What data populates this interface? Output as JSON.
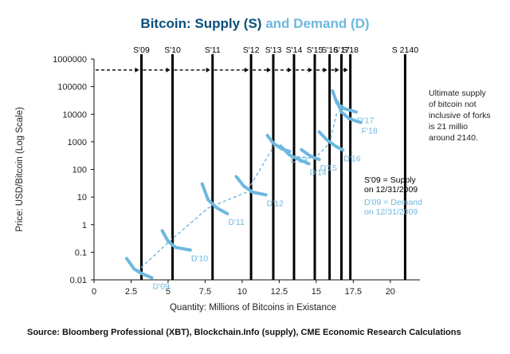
{
  "chart_data": {
    "type": "line",
    "title_supply": "Bitcoin: Supply (S)",
    "title_and": "and",
    "title_demand": "Demand (D)",
    "xlabel": "Quantity: Millions of Bitcoins in Existance",
    "ylabel": "Price: USD/Bitcoin (Log Scale)",
    "xlim": [
      0,
      22
    ],
    "ylim": [
      0.01,
      1000000
    ],
    "y_scale": "log",
    "x_ticks": [
      0,
      2.5,
      5,
      7.5,
      10,
      12.5,
      15,
      17.5,
      20
    ],
    "x_tick_labels": [
      "0",
      "2.5",
      "5",
      "7.5",
      "10",
      "12.5",
      "15",
      "17.5",
      "20"
    ],
    "y_ticks": [
      0.01,
      0.1,
      1,
      10,
      100,
      1000,
      10000,
      100000,
      1000000
    ],
    "y_tick_labels": [
      "0.01",
      "0.1",
      "1",
      "10",
      "100",
      "1000",
      "10000",
      "100000",
      "1000000"
    ],
    "supply_lines": [
      {
        "label": "S'09",
        "x": 3.2
      },
      {
        "label": "S'10",
        "x": 5.3
      },
      {
        "label": "S'11",
        "x": 8.0
      },
      {
        "label": "S'12",
        "x": 10.6
      },
      {
        "label": "S'13",
        "x": 12.1
      },
      {
        "label": "S'14",
        "x": 13.5
      },
      {
        "label": "S'15",
        "x": 14.9
      },
      {
        "label": "S'16",
        "x": 15.9
      },
      {
        "label": "S'17",
        "x": 16.7
      },
      {
        "label": "S'18",
        "x": 17.3
      },
      {
        "label": "S 2140",
        "x": 21.0
      }
    ],
    "demand_curves": [
      {
        "label": "D'09",
        "points": [
          [
            2.2,
            0.06
          ],
          [
            2.7,
            0.025
          ],
          [
            3.2,
            0.017
          ],
          [
            3.9,
            0.012
          ]
        ]
      },
      {
        "label": "D'10",
        "points": [
          [
            4.6,
            0.6
          ],
          [
            5.0,
            0.25
          ],
          [
            5.5,
            0.15
          ],
          [
            6.5,
            0.12
          ]
        ]
      },
      {
        "label": "D'11",
        "points": [
          [
            7.3,
            30
          ],
          [
            7.7,
            8
          ],
          [
            8.3,
            4
          ],
          [
            9.0,
            2.5
          ]
        ]
      },
      {
        "label": "D'12",
        "points": [
          [
            9.6,
            55
          ],
          [
            10.1,
            25
          ],
          [
            10.7,
            15
          ],
          [
            11.6,
            12
          ]
        ]
      },
      {
        "label": "D'13",
        "points": [
          [
            11.7,
            1700
          ],
          [
            12.1,
            900
          ],
          [
            12.7,
            550
          ],
          [
            13.2,
            450
          ]
        ]
      },
      {
        "label": "D'14",
        "points": [
          [
            12.6,
            700
          ],
          [
            13.2,
            330
          ],
          [
            13.9,
            220
          ],
          [
            14.5,
            160
          ]
        ]
      },
      {
        "label": "D'15",
        "points": [
          [
            14.0,
            520
          ],
          [
            14.5,
            330
          ],
          [
            14.9,
            260
          ],
          [
            15.2,
            230
          ]
        ]
      },
      {
        "label": "D'16",
        "points": [
          [
            15.2,
            2300
          ],
          [
            15.7,
            1200
          ],
          [
            16.3,
            700
          ],
          [
            16.8,
            500
          ]
        ]
      },
      {
        "label": "D'17",
        "points": [
          [
            16.1,
            70000
          ],
          [
            16.4,
            25000
          ],
          [
            16.9,
            16000
          ],
          [
            17.7,
            12000
          ]
        ]
      },
      {
        "label": "F'18",
        "points": [
          [
            16.4,
            30000
          ],
          [
            16.7,
            12000
          ],
          [
            17.2,
            7000
          ],
          [
            18.0,
            5000
          ]
        ]
      }
    ],
    "equilibrium_path": [
      [
        2.9,
        0.02
      ],
      [
        5.1,
        0.25
      ],
      [
        7.7,
        4
      ],
      [
        10.3,
        15
      ],
      [
        12.2,
        800
      ],
      [
        13.5,
        300
      ],
      [
        14.9,
        250
      ],
      [
        15.9,
        900
      ],
      [
        16.4,
        12000
      ]
    ],
    "supply_path_y": 400000,
    "annotations": [
      {
        "lines": [
          "Ultimate supply",
          "of bitcoin not",
          "inclusive of forks",
          "is 21 millio",
          " around 2140."
        ]
      },
      {
        "lines": [
          "S'09 = Supply",
          "on 12/31/2009"
        ],
        "color": "dark"
      },
      {
        "lines": [
          "D'09 = Demand",
          "on 12/31/2009"
        ],
        "color": "light"
      }
    ],
    "colors": {
      "supply": "#0b4f7c",
      "demand": "#6db8e0",
      "axis": "#111111",
      "text": "#222222"
    }
  },
  "source_text": "Source: Bloomberg Professional (XBT), Blockchain.Info (supply), CME Economic Research Calculations"
}
